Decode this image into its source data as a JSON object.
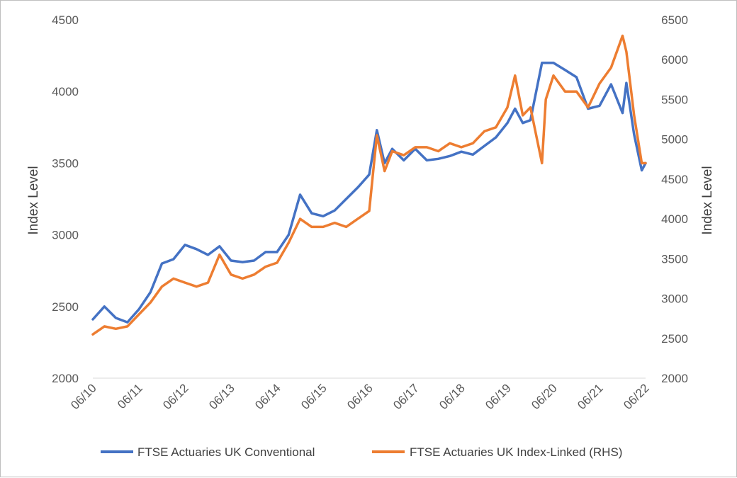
{
  "chart_data": {
    "type": "line",
    "title": "",
    "xlabel": "",
    "ylabel_left": "Index Level",
    "ylabel_right": "Index Level",
    "ylim_left": [
      2000,
      4500
    ],
    "ylim_right": [
      2000,
      6500
    ],
    "yticks_left": [
      2000,
      2500,
      3000,
      3500,
      4000,
      4500
    ],
    "yticks_right": [
      2000,
      2500,
      3000,
      3500,
      4000,
      4500,
      5000,
      5500,
      6000,
      6500
    ],
    "x_ticks": [
      "06/10",
      "06/11",
      "06/12",
      "06/13",
      "06/14",
      "06/15",
      "06/16",
      "06/17",
      "06/18",
      "06/19",
      "06/20",
      "06/21",
      "06/22"
    ],
    "x_range": [
      "2010-06",
      "2022-06"
    ],
    "legend_position": "bottom",
    "grid": false,
    "series": [
      {
        "name": "FTSE Actuaries UK Conventional",
        "axis": "left",
        "color": "#4472C4",
        "x": [
          "2010-06",
          "2010-09",
          "2010-12",
          "2011-03",
          "2011-06",
          "2011-09",
          "2011-12",
          "2012-03",
          "2012-06",
          "2012-09",
          "2012-12",
          "2013-03",
          "2013-06",
          "2013-09",
          "2013-12",
          "2014-03",
          "2014-06",
          "2014-09",
          "2014-12",
          "2015-03",
          "2015-06",
          "2015-09",
          "2015-12",
          "2016-03",
          "2016-06",
          "2016-08",
          "2016-10",
          "2016-12",
          "2017-03",
          "2017-06",
          "2017-09",
          "2017-12",
          "2018-03",
          "2018-06",
          "2018-09",
          "2018-12",
          "2019-03",
          "2019-06",
          "2019-08",
          "2019-10",
          "2019-12",
          "2020-03",
          "2020-06",
          "2020-09",
          "2020-12",
          "2021-03",
          "2021-06",
          "2021-09",
          "2021-12",
          "2022-01",
          "2022-03",
          "2022-05",
          "2022-06"
        ],
        "values": [
          2410,
          2500,
          2420,
          2390,
          2480,
          2600,
          2800,
          2830,
          2930,
          2900,
          2860,
          2920,
          2820,
          2810,
          2820,
          2880,
          2880,
          3000,
          3280,
          3150,
          3130,
          3170,
          3250,
          3330,
          3420,
          3730,
          3500,
          3600,
          3520,
          3600,
          3520,
          3530,
          3550,
          3580,
          3560,
          3620,
          3680,
          3780,
          3880,
          3780,
          3800,
          4200,
          4200,
          4150,
          4100,
          3880,
          3900,
          4050,
          3850,
          4060,
          3700,
          3450,
          3500
        ]
      },
      {
        "name": "FTSE Actuaries UK Index-Linked (RHS)",
        "axis": "right",
        "color": "#ED7D31",
        "x": [
          "2010-06",
          "2010-09",
          "2010-12",
          "2011-03",
          "2011-06",
          "2011-09",
          "2011-12",
          "2012-03",
          "2012-06",
          "2012-09",
          "2012-12",
          "2013-03",
          "2013-06",
          "2013-09",
          "2013-12",
          "2014-03",
          "2014-06",
          "2014-09",
          "2014-12",
          "2015-03",
          "2015-06",
          "2015-09",
          "2015-12",
          "2016-03",
          "2016-06",
          "2016-08",
          "2016-10",
          "2016-12",
          "2017-03",
          "2017-06",
          "2017-09",
          "2017-12",
          "2018-03",
          "2018-06",
          "2018-09",
          "2018-12",
          "2019-03",
          "2019-06",
          "2019-08",
          "2019-10",
          "2019-12",
          "2020-03",
          "2020-04",
          "2020-06",
          "2020-09",
          "2020-12",
          "2021-03",
          "2021-06",
          "2021-09",
          "2021-12",
          "2022-01",
          "2022-03",
          "2022-05",
          "2022-06"
        ],
        "values": [
          2550,
          2650,
          2620,
          2650,
          2800,
          2950,
          3150,
          3250,
          3200,
          3150,
          3200,
          3550,
          3300,
          3250,
          3300,
          3400,
          3450,
          3700,
          4000,
          3900,
          3900,
          3950,
          3900,
          4000,
          4100,
          5050,
          4600,
          4850,
          4800,
          4900,
          4900,
          4850,
          4950,
          4900,
          4950,
          5100,
          5150,
          5400,
          5800,
          5300,
          5400,
          4700,
          5500,
          5800,
          5600,
          5600,
          5400,
          5700,
          5900,
          6300,
          6100,
          5300,
          4700,
          4700
        ]
      }
    ]
  }
}
